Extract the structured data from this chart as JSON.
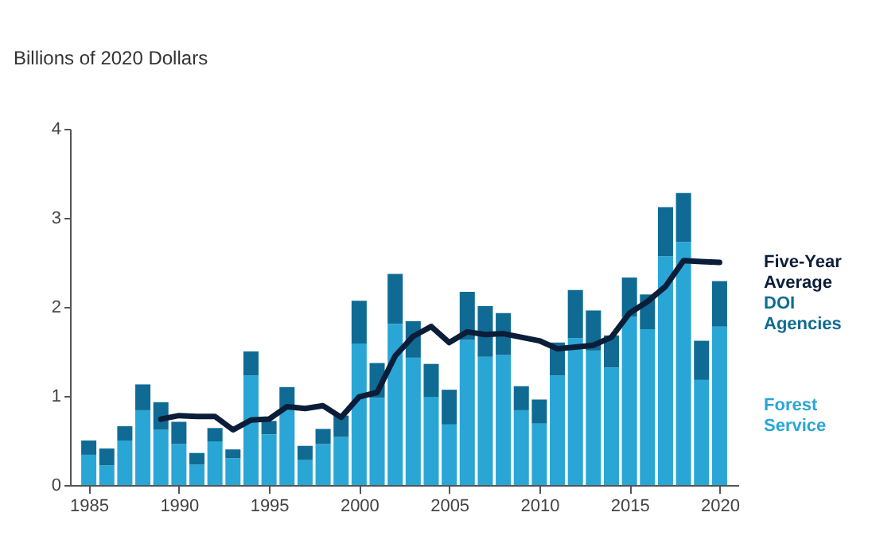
{
  "chart_data": {
    "type": "bar",
    "stacked": true,
    "ylabel": "Billions of 2020 Dollars",
    "x": [
      1985,
      1986,
      1987,
      1988,
      1989,
      1990,
      1991,
      1992,
      1993,
      1994,
      1995,
      1996,
      1997,
      1998,
      1999,
      2000,
      2001,
      2002,
      2003,
      2004,
      2005,
      2006,
      2007,
      2008,
      2009,
      2010,
      2011,
      2012,
      2013,
      2014,
      2015,
      2016,
      2017,
      2018,
      2019,
      2020
    ],
    "xlim": [
      1984.4,
      2020.6
    ],
    "xticks": [
      1985,
      1990,
      1995,
      2000,
      2005,
      2010,
      2015,
      2020
    ],
    "ylim": [
      0,
      4
    ],
    "yticks": [
      0,
      1,
      2,
      3,
      4
    ],
    "grid": false,
    "legend": false,
    "series": [
      {
        "name": "Forest Service",
        "color": "#29a6d6",
        "values": [
          0.34,
          0.22,
          0.5,
          0.84,
          0.62,
          0.46,
          0.23,
          0.49,
          0.3,
          1.23,
          0.57,
          0.86,
          0.28,
          0.46,
          0.54,
          1.59,
          0.98,
          1.81,
          1.43,
          0.99,
          0.68,
          1.63,
          1.44,
          1.46,
          0.84,
          0.69,
          1.23,
          1.65,
          1.51,
          1.32,
          1.89,
          1.75,
          2.57,
          2.73,
          1.18,
          1.78
        ]
      },
      {
        "name": "DOI Agencies",
        "color": "#0f6b93",
        "values": [
          0.16,
          0.19,
          0.16,
          0.29,
          0.31,
          0.25,
          0.13,
          0.15,
          0.1,
          0.27,
          0.15,
          0.24,
          0.16,
          0.17,
          0.24,
          0.48,
          0.39,
          0.56,
          0.41,
          0.37,
          0.39,
          0.54,
          0.57,
          0.47,
          0.27,
          0.27,
          0.37,
          0.54,
          0.45,
          0.36,
          0.44,
          0.39,
          0.55,
          0.55,
          0.44,
          0.51
        ]
      },
      {
        "name": "Five-Year Average",
        "type": "line",
        "color": "#0b1d38",
        "x": [
          1989,
          1990,
          1991,
          1992,
          1993,
          1994,
          1995,
          1996,
          1997,
          1998,
          1999,
          2000,
          2001,
          2002,
          2003,
          2004,
          2005,
          2006,
          2007,
          2008,
          2009,
          2010,
          2011,
          2012,
          2013,
          2014,
          2015,
          2016,
          2017,
          2018,
          2019,
          2020
        ],
        "values": [
          0.74,
          0.78,
          0.77,
          0.77,
          0.62,
          0.73,
          0.74,
          0.88,
          0.86,
          0.89,
          0.76,
          0.99,
          1.04,
          1.45,
          1.67,
          1.78,
          1.6,
          1.72,
          1.69,
          1.7,
          1.66,
          1.62,
          1.53,
          1.55,
          1.57,
          1.66,
          1.93,
          2.06,
          2.23,
          2.52,
          2.51,
          2.5
        ]
      }
    ]
  }
}
